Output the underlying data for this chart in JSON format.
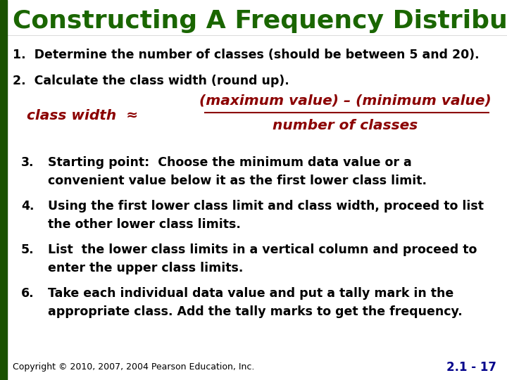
{
  "title": "Constructing A Frequency Distribution",
  "title_color": "#1a6600",
  "title_fontsize": 26,
  "background_color": "#FFFFFF",
  "left_bar_color": "#1a5200",
  "item1": "1.  Determine the number of classes (should be between 5 and 20).",
  "item2": "2.  Calculate the class width (round up).",
  "class_width_label": "class width  ≈",
  "fraction_numerator": "(maximum value) – (minimum value)",
  "fraction_denominator": "number of classes",
  "fraction_color": "#8B0000",
  "item3_num": "3.",
  "item3_text": "Starting point:  Choose the minimum data value or a\nconvenient value below it as the first lower class limit.",
  "item4_num": "4.",
  "item4_text": "Using the first lower class limit and class width, proceed to list\nthe other lower class limits.",
  "item5_num": "5.",
  "item5_text": "List  the lower class limits in a vertical column and proceed to\nenter the upper class limits.",
  "item6_num": "6.",
  "item6_text": "Take each individual data value and put a tally mark in the\nappropriate class. Add the tally marks to get the frequency.",
  "body_color": "#000000",
  "body_fontsize": 12.5,
  "copyright": "Copyright © 2010, 2007, 2004 Pearson Education, Inc.",
  "page_num": "2.1 - 17",
  "footer_fontsize": 9
}
